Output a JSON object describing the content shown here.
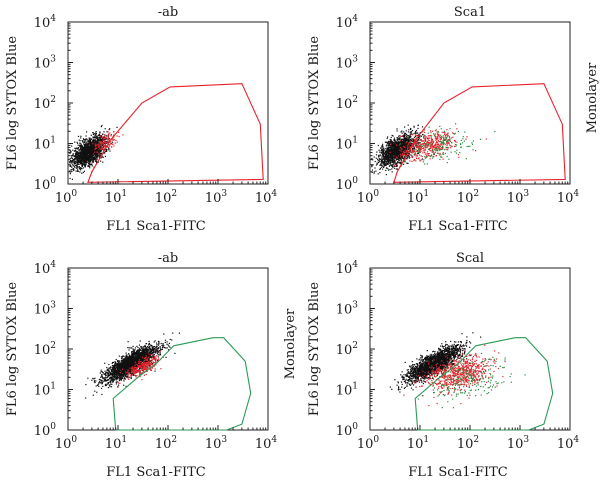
{
  "chart_data": [
    {
      "type": "scatter",
      "title": "-ab",
      "xlabel": "FL1 Sca1-FITC",
      "ylabel": "FL6 log SYTOX Blue",
      "xscale": "log",
      "yscale": "log",
      "xlim": [
        1,
        10000
      ],
      "ylim": [
        1,
        10000
      ],
      "xticks": [
        {
          "base": "10",
          "exp": "0"
        },
        {
          "base": "10",
          "exp": "1"
        },
        {
          "base": "10",
          "exp": "2"
        },
        {
          "base": "10",
          "exp": "3"
        },
        {
          "base": "10",
          "exp": "4"
        }
      ],
      "yticks": [
        {
          "base": "10",
          "exp": "0"
        },
        {
          "base": "10",
          "exp": "1"
        },
        {
          "base": "10",
          "exp": "2"
        },
        {
          "base": "10",
          "exp": "3"
        },
        {
          "base": "10",
          "exp": "4"
        }
      ],
      "side_label": "",
      "gate_color": "#e8212b",
      "gate": [
        [
          2.5,
          1.1
        ],
        [
          3,
          2
        ],
        [
          7,
          12
        ],
        [
          30,
          100
        ],
        [
          110,
          250
        ],
        [
          3000,
          300
        ],
        [
          7000,
          30
        ],
        [
          8000,
          1.3
        ]
      ],
      "clusters": [
        {
          "color": "#111111",
          "n": 1600,
          "center": [
            2.6,
            6.5
          ],
          "sx": 0.17,
          "sy": 0.2,
          "rho": 0.55
        },
        {
          "color": "#e8212b",
          "n": 120,
          "center": [
            5.5,
            11
          ],
          "sx": 0.12,
          "sy": 0.13,
          "rho": 0.6
        }
      ]
    },
    {
      "type": "scatter",
      "title": "Sca1",
      "xlabel": "FL1 Sca1-FITC",
      "ylabel": "FL6 log SYTOX Blue",
      "xscale": "log",
      "yscale": "log",
      "xlim": [
        1,
        10000
      ],
      "ylim": [
        1,
        10000
      ],
      "xticks": [
        {
          "base": "10",
          "exp": "0"
        },
        {
          "base": "10",
          "exp": "1"
        },
        {
          "base": "10",
          "exp": "2"
        },
        {
          "base": "10",
          "exp": "3"
        },
        {
          "base": "10",
          "exp": "4"
        }
      ],
      "yticks": [
        {
          "base": "10",
          "exp": "0"
        },
        {
          "base": "10",
          "exp": "1"
        },
        {
          "base": "10",
          "exp": "2"
        },
        {
          "base": "10",
          "exp": "3"
        },
        {
          "base": "10",
          "exp": "4"
        }
      ],
      "side_label": "Monolayer",
      "gate_color": "#e8212b",
      "gate": [
        [
          3,
          1.1
        ],
        [
          3.5,
          2
        ],
        [
          8,
          12
        ],
        [
          30,
          100
        ],
        [
          110,
          250
        ],
        [
          3000,
          300
        ],
        [
          7000,
          30
        ],
        [
          8000,
          1.3
        ]
      ],
      "clusters": [
        {
          "color": "#111111",
          "n": 1500,
          "center": [
            3.5,
            7
          ],
          "sx": 0.19,
          "sy": 0.2,
          "rho": 0.55
        },
        {
          "color": "#e8212b",
          "n": 450,
          "center": [
            14,
            9
          ],
          "sx": 0.28,
          "sy": 0.17,
          "rho": 0.35
        },
        {
          "color": "#2a8a3c",
          "n": 180,
          "center": [
            25,
            9
          ],
          "sx": 0.35,
          "sy": 0.2,
          "rho": 0.3
        }
      ]
    },
    {
      "type": "scatter",
      "title": "-ab",
      "xlabel": "FL1 Sca1-FITC",
      "ylabel": "FL6 log SYTOX Blue",
      "xscale": "log",
      "yscale": "log",
      "xlim": [
        1,
        10000
      ],
      "ylim": [
        1,
        10000
      ],
      "xticks": [
        {
          "base": "10",
          "exp": "0"
        },
        {
          "base": "10",
          "exp": "1"
        },
        {
          "base": "10",
          "exp": "2"
        },
        {
          "base": "10",
          "exp": "3"
        },
        {
          "base": "10",
          "exp": "4"
        }
      ],
      "yticks": [
        {
          "base": "10",
          "exp": "0"
        },
        {
          "base": "10",
          "exp": "1"
        },
        {
          "base": "10",
          "exp": "2"
        },
        {
          "base": "10",
          "exp": "3"
        },
        {
          "base": "10",
          "exp": "4"
        }
      ],
      "side_label": "Monolayer",
      "gate_color": "#2a9a55",
      "gate": [
        [
          9,
          1
        ],
        [
          8,
          6
        ],
        [
          25,
          20
        ],
        [
          60,
          45
        ],
        [
          130,
          120
        ],
        [
          800,
          190
        ],
        [
          1300,
          190
        ],
        [
          3500,
          50
        ],
        [
          4500,
          8
        ],
        [
          3000,
          1.4
        ],
        [
          1500,
          1
        ]
      ],
      "clusters": [
        {
          "color": "#111111",
          "n": 2200,
          "center": [
            18,
            45
          ],
          "sx": 0.27,
          "sy": 0.22,
          "rho": 0.8
        },
        {
          "color": "#e8212b",
          "n": 260,
          "center": [
            30,
            38
          ],
          "sx": 0.17,
          "sy": 0.14,
          "rho": 0.7
        }
      ]
    },
    {
      "type": "scatter",
      "title": "Scal",
      "xlabel": "FL1 Sca1-FITC",
      "ylabel": "FL6 log SYTOX Blue",
      "xscale": "log",
      "yscale": "log",
      "xlim": [
        1,
        10000
      ],
      "ylim": [
        1,
        10000
      ],
      "xticks": [
        {
          "base": "10",
          "exp": "0"
        },
        {
          "base": "10",
          "exp": "1"
        },
        {
          "base": "10",
          "exp": "2"
        },
        {
          "base": "10",
          "exp": "3"
        },
        {
          "base": "10",
          "exp": "4"
        }
      ],
      "yticks": [
        {
          "base": "10",
          "exp": "0"
        },
        {
          "base": "10",
          "exp": "1"
        },
        {
          "base": "10",
          "exp": "2"
        },
        {
          "base": "10",
          "exp": "3"
        },
        {
          "base": "10",
          "exp": "4"
        }
      ],
      "side_label": "",
      "gate_color": "#2a9a55",
      "gate": [
        [
          9,
          1
        ],
        [
          8,
          6
        ],
        [
          25,
          20
        ],
        [
          60,
          45
        ],
        [
          130,
          120
        ],
        [
          800,
          190
        ],
        [
          1300,
          190
        ],
        [
          3500,
          50
        ],
        [
          4500,
          8
        ],
        [
          3000,
          1.4
        ],
        [
          1500,
          1
        ]
      ],
      "clusters": [
        {
          "color": "#111111",
          "n": 1900,
          "center": [
            18,
            45
          ],
          "sx": 0.27,
          "sy": 0.22,
          "rho": 0.8
        },
        {
          "color": "#e8212b",
          "n": 650,
          "center": [
            55,
            25
          ],
          "sx": 0.32,
          "sy": 0.22,
          "rho": 0.35
        },
        {
          "color": "#2a8a3c",
          "n": 200,
          "center": [
            90,
            18
          ],
          "sx": 0.38,
          "sy": 0.24,
          "rho": 0.3
        }
      ]
    }
  ]
}
